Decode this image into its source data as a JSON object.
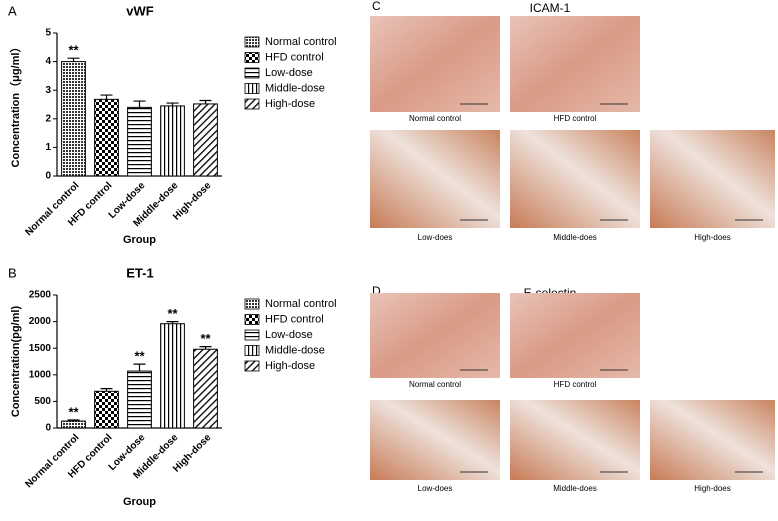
{
  "chart_data": [
    {
      "type": "bar",
      "panel": "A",
      "title": "vWF",
      "xlabel": "Group",
      "ylabel": "Concentration（μg/ml）",
      "categories": [
        "Normal control",
        "HFD control",
        "Low-dose",
        "Middle-dose",
        "High-dose"
      ],
      "values": [
        4.0,
        2.68,
        2.4,
        2.45,
        2.52
      ],
      "errors": [
        0.12,
        0.15,
        0.22,
        0.1,
        0.12
      ],
      "significance": [
        "**",
        null,
        null,
        null,
        null
      ],
      "patterns": [
        "dots",
        "checker",
        "horizontal",
        "vertical",
        "diagonal"
      ],
      "ylim": [
        0,
        5
      ],
      "yticks": [
        0,
        1,
        2,
        3,
        4,
        5
      ],
      "grid": false,
      "legend": "right"
    },
    {
      "type": "bar",
      "panel": "B",
      "title": "ET-1",
      "xlabel": "Group",
      "ylabel": "Concentration(pg/ml)",
      "categories": [
        "Normal control",
        "HFD control",
        "Low-dose",
        "Middle-dose",
        "High-dose"
      ],
      "values": [
        130,
        690,
        1070,
        1960,
        1480
      ],
      "errors": [
        20,
        50,
        130,
        40,
        50
      ],
      "significance": [
        "**",
        null,
        "**",
        "**",
        "**"
      ],
      "patterns": [
        "dots",
        "checker",
        "horizontal",
        "vertical",
        "diagonal"
      ],
      "ylim": [
        0,
        2500
      ],
      "yticks": [
        0,
        500,
        1000,
        1500,
        2000,
        2500
      ],
      "grid": false,
      "legend": "right"
    }
  ],
  "panels": [
    {
      "label": "C",
      "title": "ICAM-1",
      "captions": [
        "Normal control",
        "HFD control",
        "Low-does",
        "Middle-does",
        "High-does"
      ]
    },
    {
      "label": "D",
      "title": "E-selectin",
      "captions": [
        "Normal control",
        "HFD control",
        "Low-does",
        "Middle-does",
        "High-does"
      ]
    }
  ]
}
